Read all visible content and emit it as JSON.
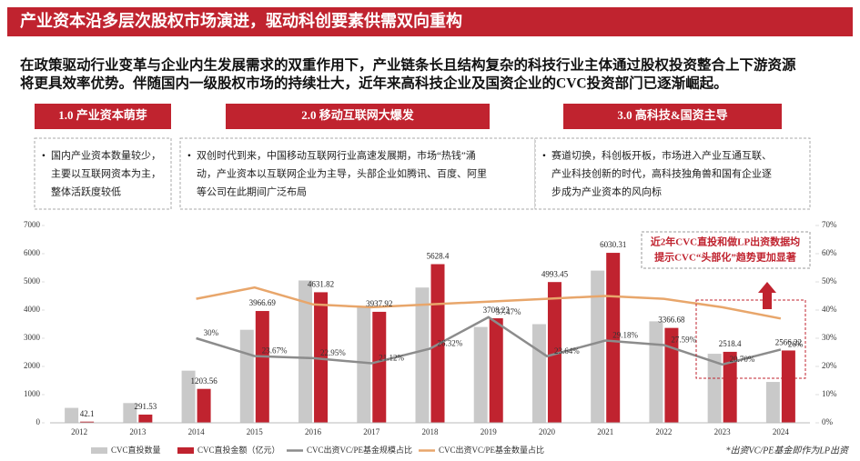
{
  "header": {
    "title": "产业资本沿多层次股权市场演进，驱动科创要素供需双向重构"
  },
  "intro": [
    "在政策驱动行业变革与企业内生发展需求的双重作用下，产业链条长且结构复杂的科技行业主体通过股权投资整合上下游资源",
    "将更具效率优势。伴随国内一级股权市场的持续壮大，近年来高科技企业及国资企业的CVC投资部门已逐渐崛起。"
  ],
  "phases": [
    {
      "title": "1.0  产业资本萌芽",
      "lines": [
        "国内产业资本数量较少，",
        "主要以互联网资本为主，",
        "整体活跃度较低"
      ]
    },
    {
      "title": "2.0  移动互联网大爆发",
      "lines": [
        "双创时代到来，中国移动互联网行业高速发展期，市场“热钱”涌",
        "动，产业资本以互联网企业为主导，头部企业如腾讯、百度、阿里",
        "等公司在此期间广泛布局"
      ]
    },
    {
      "title": "3.0  高科技&国资主导",
      "lines": [
        "赛道切换，科创板开板，市场进入产业互通互联、",
        "产业科技创新的时代，高科技独角兽和国有企业逐",
        "步成为产业资本的风向标"
      ]
    }
  ],
  "chart_data": {
    "type": "bar-line",
    "categories": [
      "2012",
      "2013",
      "2014",
      "2015",
      "2016",
      "2017",
      "2018",
      "2019",
      "2020",
      "2021",
      "2022",
      "2023",
      "2024"
    ],
    "series": [
      {
        "name": "CVC直投数量",
        "type": "bar",
        "color": "#c9c9c9",
        "values": [
          530,
          700,
          1850,
          3300,
          5050,
          4100,
          4800,
          3400,
          3500,
          5400,
          3600,
          2450,
          1450
        ]
      },
      {
        "name": "CVC直投金额（亿元）",
        "type": "bar",
        "color": "#c0232f",
        "values": [
          42.1,
          291.53,
          1203.56,
          3966.69,
          4631.82,
          3937.92,
          5628.4,
          3708.23,
          4993.45,
          6030.31,
          3366.68,
          2518.4,
          2566.22
        ],
        "labels": true
      },
      {
        "name": "CVC出资VC/PE基金规模占比",
        "type": "line",
        "axis": "y2",
        "color": "#8c8c8c",
        "values": [
          null,
          null,
          30,
          23.67,
          22.95,
          21.12,
          26.32,
          37.47,
          23.64,
          29.18,
          27.59,
          20.7,
          26
        ],
        "value_labels": [
          null,
          null,
          "30%",
          "23.67%",
          "22.95%",
          "21.12%",
          "26.32%",
          "37.47%",
          "23.64%",
          "29.18%",
          "27.59%",
          "20.70%",
          "26%"
        ]
      },
      {
        "name": "CVC出资VC/PE基金数量占比",
        "type": "line",
        "axis": "y2",
        "color": "#e8a66b",
        "values": [
          null,
          null,
          44,
          48,
          42,
          41,
          42,
          43,
          44,
          45,
          44,
          41,
          37
        ]
      }
    ],
    "ylim": [
      0,
      7000
    ],
    "yticks": [
      0,
      1000,
      2000,
      3000,
      4000,
      5000,
      6000,
      7000
    ],
    "y2lim": [
      0,
      70
    ],
    "y2ticks": [
      {
        "value": 0,
        "label": "0%"
      },
      {
        "value": 10,
        "label": "10%"
      },
      {
        "value": 20,
        "label": "20%"
      },
      {
        "value": 30,
        "label": "30%"
      },
      {
        "value": 40,
        "label": "40%"
      },
      {
        "value": 50,
        "label": "50%"
      },
      {
        "value": 60,
        "label": "60%"
      },
      {
        "value": 70,
        "label": "70%"
      }
    ],
    "annotation": [
      "近2年CVC直投和做LP出资数据均",
      "提示CVC“头部化”趋势更加显著"
    ],
    "footnote": "*出资VC/PE基金即作为LP出资"
  }
}
